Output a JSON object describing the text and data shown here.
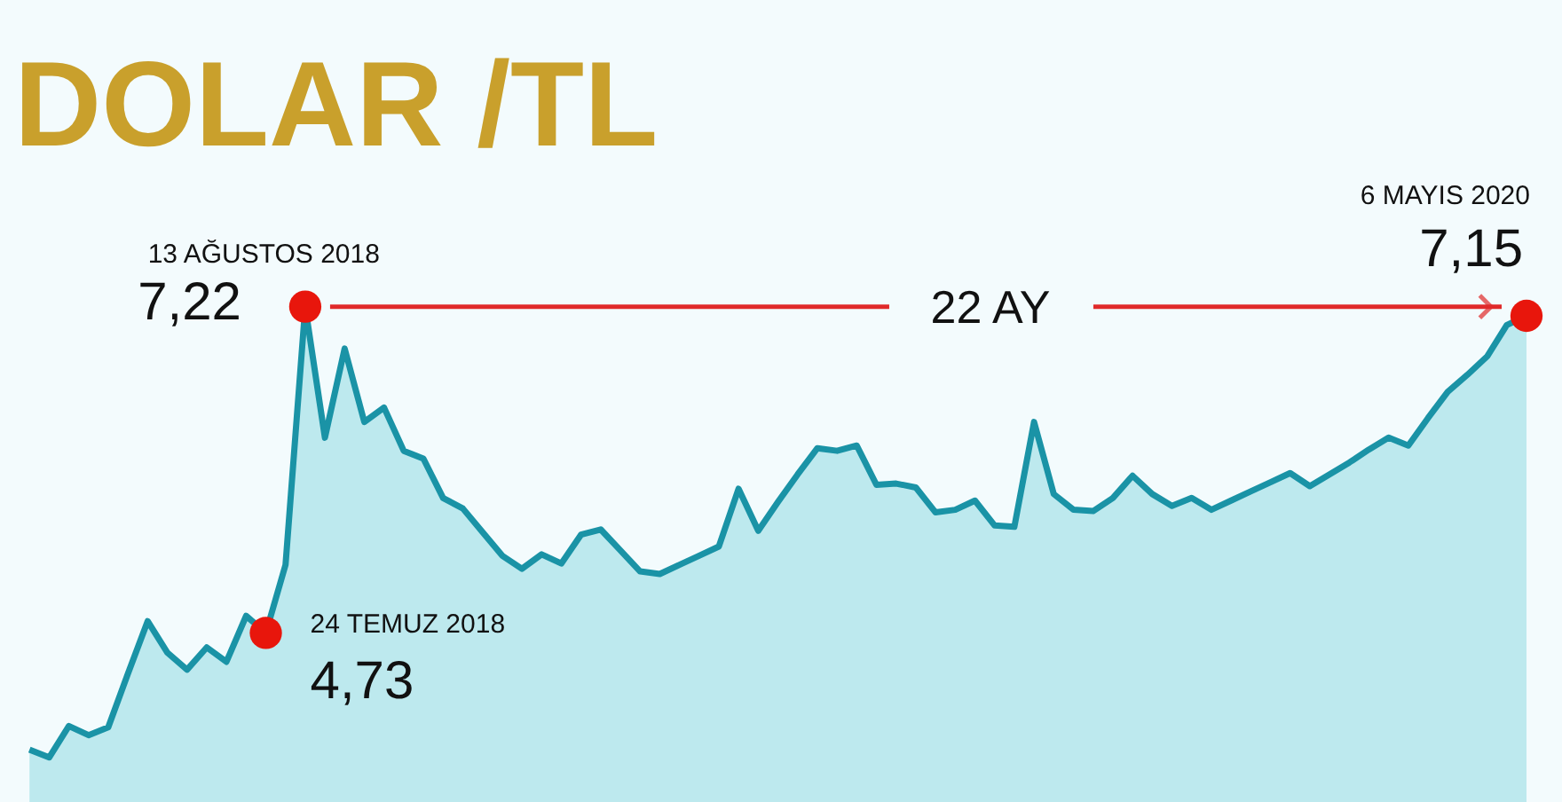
{
  "chart_data": {
    "type": "area",
    "title": "DOLAR /TL",
    "categories": [
      null,
      null,
      null,
      null,
      null,
      null,
      null,
      null,
      null,
      null,
      null,
      null,
      null,
      null,
      null,
      null,
      null,
      null,
      null,
      null,
      null,
      null,
      null,
      null,
      null,
      null,
      null,
      null,
      null,
      null,
      null,
      null,
      null,
      null,
      null,
      null,
      null,
      null,
      null,
      null,
      null,
      null,
      null,
      null,
      null,
      null,
      null,
      null,
      null,
      null,
      null,
      null,
      null,
      null,
      null,
      null,
      null,
      null,
      null,
      null,
      null,
      null,
      null,
      null,
      null,
      null,
      null,
      null,
      null,
      null,
      null,
      null,
      null,
      null,
      null,
      null,
      null
    ],
    "series": [
      {
        "color": "#1a93a6",
        "values": [
          3.84,
          3.78,
          4.02,
          3.95,
          4.01,
          4.42,
          4.82,
          4.58,
          4.45,
          4.62,
          4.51,
          4.86,
          4.73,
          5.25,
          7.22,
          6.22,
          6.9,
          6.34,
          6.45,
          6.12,
          6.06,
          5.76,
          5.68,
          5.5,
          5.32,
          5.22,
          5.33,
          5.26,
          5.48,
          5.52,
          5.36,
          5.2,
          5.18,
          5.25,
          5.32,
          5.39,
          5.83,
          5.51,
          5.73,
          5.94,
          6.14,
          6.12,
          6.16,
          5.86,
          5.87,
          5.84,
          5.65,
          5.67,
          5.74,
          5.55,
          5.54,
          6.34,
          5.79,
          5.67,
          5.66,
          5.76,
          5.93,
          5.79,
          5.7,
          5.76,
          5.67,
          5.74,
          5.81,
          5.88,
          5.95,
          5.85,
          5.94,
          6.03,
          6.13,
          6.22,
          6.16,
          6.37,
          6.57,
          6.7,
          6.84,
          7.08,
          7.15
        ],
        "value_labels": [
          null,
          null,
          null,
          null,
          null,
          null,
          null,
          null,
          null,
          null,
          null,
          null,
          "4,73",
          null,
          "7,22",
          null,
          null,
          null,
          null,
          null,
          null,
          null,
          null,
          null,
          null,
          null,
          null,
          null,
          null,
          null,
          null,
          null,
          null,
          null,
          null,
          null,
          null,
          null,
          null,
          null,
          null,
          null,
          null,
          null,
          null,
          null,
          null,
          null,
          null,
          null,
          null,
          null,
          null,
          null,
          null,
          null,
          null,
          null,
          null,
          null,
          null,
          null,
          null,
          null,
          null,
          null,
          null,
          null,
          null,
          null,
          null,
          null,
          null,
          null,
          null,
          null,
          "7,15"
        ]
      }
    ],
    "ylim": [
      3.44,
      9.56
    ],
    "annotations": [
      "24 TEMUZ 2018",
      "13 AĞUSTOS 2018",
      "6 MAYIS 2020",
      "22 AY"
    ]
  }
}
